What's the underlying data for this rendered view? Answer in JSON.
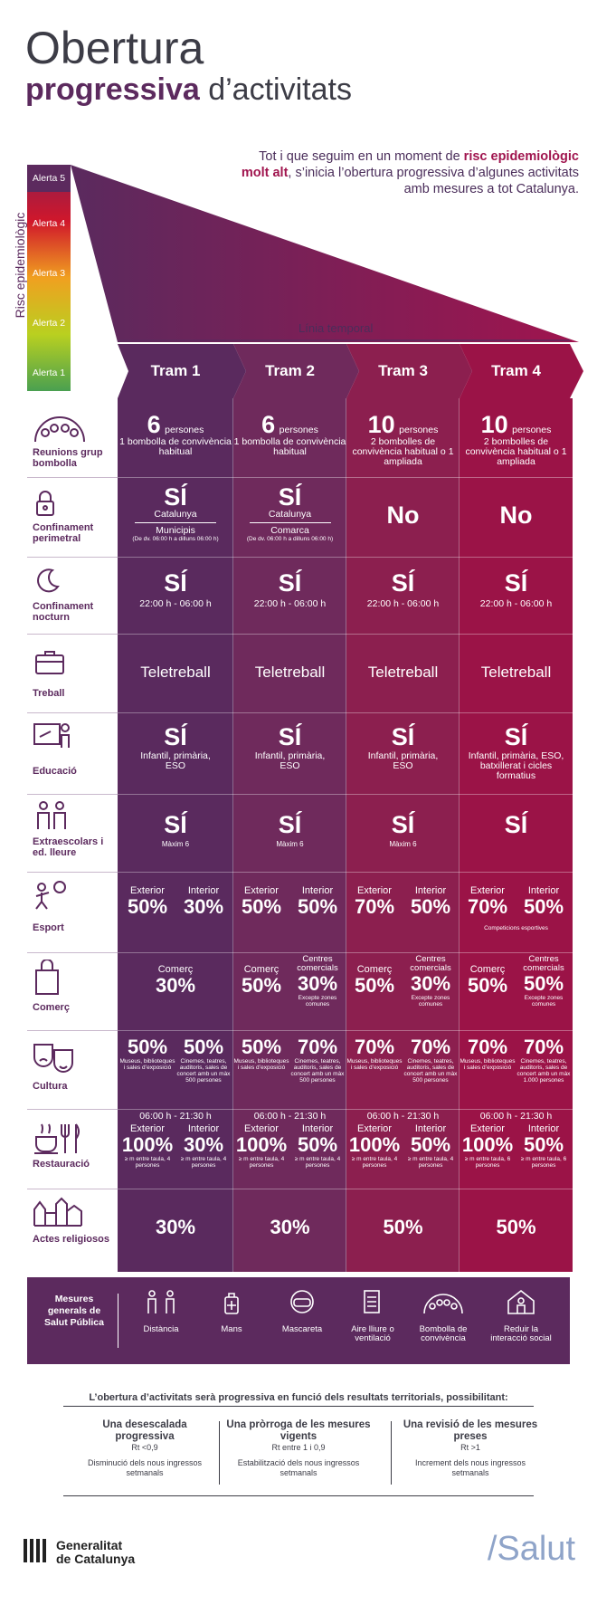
{
  "title": {
    "line1": "Obertura",
    "line2_bold": "progressiva",
    "line2_rest": "d’activitats"
  },
  "intro": {
    "pre": "Tot i que seguim en un moment de ",
    "bold": "risc epidemiològic molt alt",
    "post": ", s’inicia l’obertura progressiva d’algunes activitats amb mesures a tot Catalunya."
  },
  "risk_axis": "Risc epidemiològic",
  "alerts": [
    "Alerta 5",
    "Alerta 4",
    "Alerta 3",
    "Alerta 2",
    "Alerta 1"
  ],
  "timeline_label": "Línia temporal",
  "trams": [
    "Tram 1",
    "Tram 2",
    "Tram 3",
    "Tram 4"
  ],
  "colors": {
    "c1": "#5a2a5e",
    "c2": "#6f2a5c",
    "c3": "#8c1f4f",
    "c4": "#9b1347",
    "dark": "#5c2a5e"
  },
  "rows": {
    "reunions": {
      "label": "Reunions grup bombolla",
      "cells": [
        {
          "num": "6",
          "unit": "persones",
          "sub": "1 bombolla de convivència habitual"
        },
        {
          "num": "6",
          "unit": "persones",
          "sub": "1 bombolla de convivència habitual"
        },
        {
          "num": "10",
          "unit": "persones",
          "sub": "2 bombolles de convivència habitual o 1 ampliada"
        },
        {
          "num": "10",
          "unit": "persones",
          "sub": "2 bombolles de convivència habitual o 1 ampliada"
        }
      ]
    },
    "confinament_perimetral": {
      "label": "Confinament perimetral",
      "cells": [
        {
          "main": "SÍ",
          "a": "Catalunya",
          "b": "Municipis",
          "c": "(De dv. 06:00 h a dilluns 06:00 h)"
        },
        {
          "main": "SÍ",
          "a": "Catalunya",
          "b": "Comarca",
          "c": "(De dv. 06:00 h a dilluns 06:00 h)"
        },
        {
          "main": "No",
          "a": "",
          "b": "",
          "c": ""
        },
        {
          "main": "No",
          "a": "",
          "b": "",
          "c": ""
        }
      ]
    },
    "confinament_nocturn": {
      "label": "Confinament nocturn",
      "cells": [
        {
          "main": "SÍ",
          "sub": "22:00 h - 06:00 h"
        },
        {
          "main": "SÍ",
          "sub": "22:00 h - 06:00 h"
        },
        {
          "main": "SÍ",
          "sub": "22:00 h - 06:00 h"
        },
        {
          "main": "SÍ",
          "sub": "22:00 h - 06:00 h"
        }
      ]
    },
    "treball": {
      "label": "Treball",
      "cells": [
        "Teletreball",
        "Teletreball",
        "Teletreball",
        "Teletreball"
      ]
    },
    "educacio": {
      "label": "Educació",
      "cells": [
        {
          "main": "SÍ",
          "sub": "Infantil, primària, ESO"
        },
        {
          "main": "SÍ",
          "sub": "Infantil, primària, ESO"
        },
        {
          "main": "SÍ",
          "sub": "Infantil, primària, ESO"
        },
        {
          "main": "SÍ",
          "sub": "Infantil, primària, ESO, batxillerat i cicles formatius"
        }
      ]
    },
    "extraescolars": {
      "label": "Extraescolars i ed. lleure",
      "cells": [
        {
          "main": "SÍ",
          "sub": "Màxim 6"
        },
        {
          "main": "SÍ",
          "sub": "Màxim 6"
        },
        {
          "main": "SÍ",
          "sub": "Màxim 6"
        },
        {
          "main": "SÍ",
          "sub": ""
        }
      ]
    },
    "esport": {
      "label": "Esport",
      "ext_label": "Exterior",
      "int_label": "Interior",
      "cells": [
        {
          "ext": "50%",
          "int": "30%",
          "note": ""
        },
        {
          "ext": "50%",
          "int": "50%",
          "note": ""
        },
        {
          "ext": "70%",
          "int": "50%",
          "note": ""
        },
        {
          "ext": "70%",
          "int": "50%",
          "note": "Competicions esportives"
        }
      ]
    },
    "comerc": {
      "label": "Comerç",
      "cells": [
        {
          "single": true,
          "l1": "Comerç",
          "v1": "30%"
        },
        {
          "single": false,
          "l1": "Comerç",
          "v1": "50%",
          "l2": "Centres comercials",
          "v2": "30%",
          "note": "Excepte zones comunes"
        },
        {
          "single": false,
          "l1": "Comerç",
          "v1": "50%",
          "l2": "Centres comercials",
          "v2": "30%",
          "note": "Excepte zones comunes"
        },
        {
          "single": false,
          "l1": "Comerç",
          "v1": "50%",
          "l2": "Centres comercials",
          "v2": "50%",
          "note": "Excepte zones comunes"
        }
      ]
    },
    "cultura": {
      "label": "Cultura",
      "cells": [
        {
          "v1": "50%",
          "n1": "Museus, biblioteques i sales d’exposició",
          "v2": "50%",
          "n2": "Cinemes, teatres, auditoris, sales de concert amb un màx 500 persones"
        },
        {
          "v1": "50%",
          "n1": "Museus, biblioteques i sales d’exposició",
          "v2": "70%",
          "n2": "Cinemes, teatres, auditoris, sales de concert amb un màx 500 persones"
        },
        {
          "v1": "70%",
          "n1": "Museus, biblioteques i sales d’exposició",
          "v2": "70%",
          "n2": "Cinemes, teatres, auditoris, sales de concert amb un màx 500 persones"
        },
        {
          "v1": "70%",
          "n1": "Museus, biblioteques i sales d’exposició",
          "v2": "70%",
          "n2": "Cinemes, teatres, auditoris, sales de concert amb un màx 1.000 persones"
        }
      ]
    },
    "restauracio": {
      "label": "Restauració",
      "hours": "06:00 h - 21:30 h",
      "ext_label": "Exterior",
      "int_label": "Interior",
      "cells": [
        {
          "ext": "100%",
          "int": "30%",
          "n1": "≥ m entre taula, 4 persones",
          "n2": "≥ m entre taula, 4 persones"
        },
        {
          "ext": "100%",
          "int": "50%",
          "n1": "≥ m entre taula, 4 persones",
          "n2": "≥ m entre taula, 4 persones"
        },
        {
          "ext": "100%",
          "int": "50%",
          "n1": "≥ m entre taula, 4 persones",
          "n2": "≥ m entre taula, 4 persones"
        },
        {
          "ext": "100%",
          "int": "50%",
          "n1": "≥ m entre taula, 6 persones",
          "n2": "≥ m entre taula, 6 persones"
        }
      ]
    },
    "actes": {
      "label": "Actes religiosos",
      "cells": [
        "30%",
        "30%",
        "50%",
        "50%"
      ]
    }
  },
  "measures": {
    "title": "Mesures generals de Salut Pública",
    "items": [
      "Distància",
      "Mans",
      "Mascareta",
      "Aire lliure o ventilació",
      "Bombolla de convivència",
      "Reduir la interacció social"
    ]
  },
  "bottom": {
    "title": "L’obertura d’activitats serà progressiva en funció dels resultats territorials, possibilitant:",
    "boxes": [
      {
        "t": "Una desescalada progressiva",
        "rt": "Rt <0,9",
        "s": "Disminució dels nous ingressos setmanals"
      },
      {
        "t": "Una pròrroga de les mesures vigents",
        "rt": "Rt entre 1 i 0,9",
        "s": "Estabilització dels nous ingressos setmanals"
      },
      {
        "t": "Una revisió de les mesures preses",
        "rt": "Rt >1",
        "s": "Increment dels nous ingressos setmanals"
      }
    ]
  },
  "footer": {
    "gencat1": "Generalitat",
    "gencat2": "de Catalunya",
    "salut": "/Salut"
  }
}
